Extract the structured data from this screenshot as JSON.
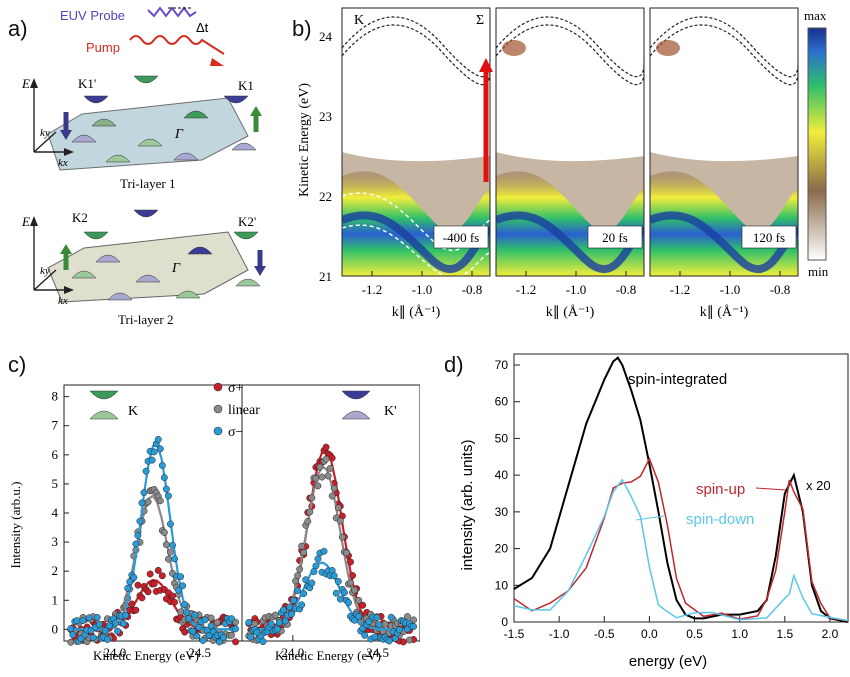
{
  "panel_a": {
    "label": "a)",
    "probe_label": "EUV Probe",
    "pump_label": "Pump",
    "delay_label": "Δt",
    "tri1": {
      "title": "Tri-layer 1",
      "axis_e": "E",
      "axis_ky": "ky",
      "axis_kx": "kx",
      "k_left": "K1'",
      "k_right": "K1",
      "gamma": "Γ"
    },
    "tri2": {
      "title": "Tri-layer 2",
      "axis_e": "E",
      "axis_ky": "ky",
      "axis_kx": "kx",
      "k_left": "K2",
      "k_right": "K2'",
      "gamma": "Γ"
    }
  },
  "panel_b": {
    "label": "b)",
    "ylabel": "Kinetic Energy (eV)",
    "xlabel": "k∥ (Å⁻¹)",
    "yticks": [
      "24",
      "23",
      "22",
      "21"
    ],
    "xticks": [
      "-1.2",
      "-1.0",
      "-0.8"
    ],
    "point_K": "K",
    "point_Sigma": "Σ",
    "delays": [
      "-400 fs",
      "20 fs",
      "120 fs"
    ],
    "colorbar": {
      "max": "max",
      "min": "min"
    }
  },
  "chart_data": [
    {
      "id": "c-left",
      "type": "scatter",
      "xlabel": "Kinetic Energy (eV)",
      "ylabel": "Intensity (arb.u.)",
      "xlim": [
        23.7,
        24.75
      ],
      "ylim": [
        -0.4,
        8.4
      ],
      "xticks": [
        "24.0",
        "24.5"
      ],
      "yticks": [
        "0",
        "1",
        "2",
        "3",
        "4",
        "5",
        "6",
        "7",
        "8"
      ],
      "annotation": "K",
      "series": [
        {
          "name": "σ+",
          "color": "#c8202a",
          "peak_x": 24.23,
          "peak_y": 1.7,
          "width": 0.14
        },
        {
          "name": "linear",
          "color": "#8a8a8a",
          "peak_x": 24.22,
          "peak_y": 4.6,
          "width": 0.13
        },
        {
          "name": "σ−",
          "color": "#2b9bd8",
          "peak_x": 24.24,
          "peak_y": 6.4,
          "width": 0.12
        }
      ]
    },
    {
      "id": "c-right",
      "type": "scatter",
      "xlabel": "Kinetic Energy (eV)",
      "xlim": [
        23.7,
        24.75
      ],
      "ylim": [
        -0.4,
        8.4
      ],
      "xticks": [
        "24.0",
        "24.5"
      ],
      "annotation": "K'",
      "series": [
        {
          "name": "σ+",
          "color": "#c8202a",
          "peak_x": 24.19,
          "peak_y": 6.2,
          "width": 0.14
        },
        {
          "name": "linear",
          "color": "#8a8a8a",
          "peak_x": 24.18,
          "peak_y": 5.6,
          "width": 0.14
        },
        {
          "name": "σ−",
          "color": "#2b9bd8",
          "peak_x": 24.17,
          "peak_y": 2.3,
          "width": 0.15
        }
      ]
    },
    {
      "id": "d",
      "type": "line",
      "xlabel": "energy (eV)",
      "ylabel": "intensity (arb. units)",
      "xlim": [
        -1.5,
        2.2
      ],
      "ylim": [
        0,
        73
      ],
      "xticks": [
        "-1.5",
        "-1.0",
        "-0.5",
        "0.0",
        "0.5",
        "1.0",
        "1.5",
        "2.0"
      ],
      "yticks": [
        "0",
        "10",
        "20",
        "30",
        "40",
        "50",
        "60",
        "70"
      ],
      "annotations": [
        "spin-integrated",
        "spin-up",
        "spin-down",
        "x 20"
      ],
      "series": [
        {
          "name": "spin-integrated",
          "color": "#000000",
          "x": [
            -1.5,
            -1.3,
            -1.1,
            -0.9,
            -0.7,
            -0.5,
            -0.4,
            -0.35,
            -0.3,
            -0.2,
            -0.1,
            0.0,
            0.1,
            0.2,
            0.3,
            0.4,
            0.5,
            0.6,
            0.8,
            1.0,
            1.2,
            1.3,
            1.4,
            1.5,
            1.6,
            1.7,
            1.8,
            1.9,
            2.0,
            2.2
          ],
          "y": [
            9,
            12,
            20,
            37,
            54,
            66,
            71,
            72,
            70,
            63,
            55,
            43,
            30,
            16,
            6,
            2,
            1,
            1,
            2,
            2,
            3,
            6,
            18,
            35,
            40,
            30,
            10,
            3,
            1,
            0
          ]
        },
        {
          "name": "spin-up",
          "color": "#c0262d",
          "x": [
            -1.5,
            -1.3,
            -1.1,
            -0.9,
            -0.7,
            -0.5,
            -0.4,
            -0.3,
            -0.2,
            -0.1,
            0.0,
            0.1,
            0.2,
            0.3,
            0.4,
            0.6,
            0.8,
            1.0,
            1.2,
            1.3,
            1.4,
            1.5,
            1.55,
            1.6,
            1.7,
            1.8,
            1.9,
            2.0,
            2.2
          ],
          "y": [
            5,
            4,
            6,
            9,
            15,
            28,
            37,
            38,
            38,
            40,
            44,
            38,
            25,
            12,
            4,
            2,
            3,
            2,
            3,
            6,
            14,
            30,
            38,
            35,
            32,
            12,
            4,
            2,
            1
          ]
        },
        {
          "name": "spin-down",
          "color": "#5bc8ea",
          "x": [
            -1.5,
            -1.3,
            -1.1,
            -0.9,
            -0.7,
            -0.5,
            -0.4,
            -0.3,
            -0.2,
            -0.1,
            0.0,
            0.1,
            0.2,
            0.3,
            0.5,
            0.7,
            1.0,
            1.3,
            1.5,
            1.55,
            1.6,
            1.7,
            1.8,
            2.0,
            2.2
          ],
          "y": [
            5,
            3,
            4,
            8,
            18,
            28,
            36,
            38,
            33,
            28,
            15,
            6,
            3,
            2,
            2,
            2,
            1,
            2,
            5,
            8,
            14,
            6,
            2,
            1,
            1
          ]
        }
      ]
    }
  ],
  "panel_c": {
    "label": "c)",
    "legend": [
      "σ+",
      "linear",
      "σ−"
    ]
  },
  "panel_d": {
    "label": "d)"
  }
}
